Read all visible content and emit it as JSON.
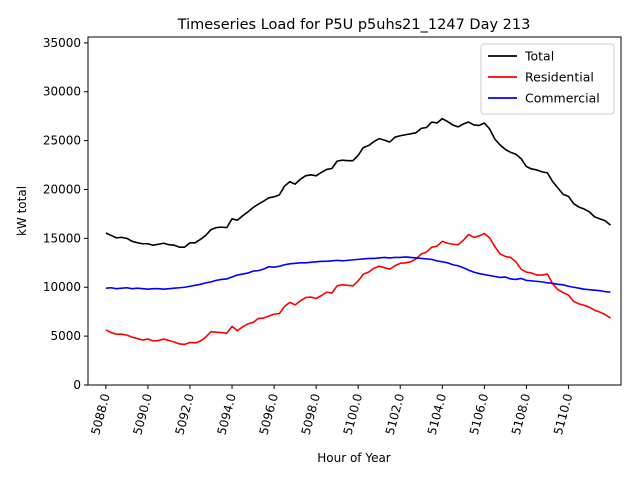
{
  "chart_data": {
    "type": "line",
    "title": "Timeseries Load for P5U p5uhs21_1247  Day 213",
    "xlabel": "Hour of Year",
    "ylabel": "kW total",
    "xlim": [
      5087.15,
      5112.5
    ],
    "ylim": [
      0,
      35600
    ],
    "x_start": 5088.0,
    "x_step": 0.25,
    "x_ticks": [
      5088,
      5090,
      5092,
      5094,
      5096,
      5098,
      5100,
      5102,
      5104,
      5106,
      5108,
      5110
    ],
    "x_tick_labels": [
      "5088.0",
      "5090.0",
      "5092.0",
      "5094.0",
      "5096.0",
      "5098.0",
      "5100.0",
      "5102.0",
      "5104.0",
      "5106.0",
      "5108.0",
      "5110.0"
    ],
    "y_ticks": [
      0,
      5000,
      10000,
      15000,
      20000,
      25000,
      30000,
      35000
    ],
    "y_tick_labels": [
      "0",
      "5000",
      "10000",
      "15000",
      "20000",
      "25000",
      "30000",
      "35000"
    ],
    "legend_position": "top-right",
    "grid": false,
    "series": [
      {
        "name": "Total",
        "color": "#000000",
        "values": [
          15550,
          15300,
          15050,
          15100,
          15000,
          14700,
          14550,
          14450,
          14450,
          14300,
          14400,
          14500,
          14350,
          14300,
          14100,
          14100,
          14550,
          14550,
          14900,
          15300,
          15900,
          16100,
          16150,
          16100,
          17000,
          16850,
          17300,
          17700,
          18150,
          18500,
          18800,
          19150,
          19250,
          19450,
          20350,
          20800,
          20550,
          21050,
          21400,
          21500,
          21400,
          21750,
          22050,
          22150,
          22900,
          23000,
          22950,
          22950,
          23500,
          24300,
          24500,
          24900,
          25200,
          25050,
          24850,
          25350,
          25500,
          25600,
          25700,
          25800,
          26250,
          26350,
          26900,
          26800,
          27250,
          26950,
          26600,
          26400,
          26700,
          26900,
          26600,
          26550,
          26800,
          26200,
          25150,
          24550,
          24100,
          23800,
          23600,
          23150,
          22350,
          22100,
          22000,
          21800,
          21700,
          20800,
          20150,
          19500,
          19300,
          18550,
          18200,
          18000,
          17700,
          17200,
          17000,
          16800,
          16350
        ]
      },
      {
        "name": "Residential",
        "color": "#ff0000",
        "values": [
          5650,
          5350,
          5200,
          5200,
          5100,
          4900,
          4750,
          4600,
          4700,
          4500,
          4550,
          4700,
          4550,
          4400,
          4200,
          4150,
          4350,
          4300,
          4500,
          4900,
          5450,
          5400,
          5350,
          5300,
          6000,
          5550,
          5950,
          6250,
          6400,
          6800,
          6850,
          7050,
          7250,
          7300,
          8050,
          8450,
          8200,
          8600,
          8950,
          9000,
          8850,
          9150,
          9500,
          9400,
          10150,
          10250,
          10200,
          10150,
          10650,
          11350,
          11550,
          11950,
          12150,
          12000,
          11850,
          12200,
          12450,
          12500,
          12600,
          12900,
          13400,
          13600,
          14100,
          14200,
          14700,
          14500,
          14400,
          14350,
          14800,
          15400,
          15100,
          15250,
          15500,
          15050,
          14150,
          13400,
          13150,
          13050,
          12600,
          11850,
          11550,
          11450,
          11250,
          11250,
          11350,
          10350,
          9750,
          9450,
          9200,
          8550,
          8300,
          8150,
          7950,
          7650,
          7450,
          7200,
          6850
        ]
      },
      {
        "name": "Commercial",
        "color": "#0000ff",
        "values": [
          9900,
          9950,
          9850,
          9900,
          9950,
          9850,
          9900,
          9850,
          9800,
          9850,
          9850,
          9800,
          9850,
          9900,
          9950,
          10000,
          10100,
          10200,
          10300,
          10450,
          10550,
          10700,
          10800,
          10850,
          11050,
          11250,
          11350,
          11450,
          11650,
          11700,
          11850,
          12100,
          12050,
          12150,
          12300,
          12400,
          12450,
          12500,
          12500,
          12550,
          12600,
          12650,
          12650,
          12700,
          12750,
          12700,
          12750,
          12800,
          12850,
          12900,
          12950,
          12950,
          13000,
          13050,
          13000,
          13050,
          13050,
          13100,
          13050,
          13000,
          12950,
          12900,
          12850,
          12700,
          12600,
          12500,
          12300,
          12200,
          12000,
          11750,
          11550,
          11400,
          11300,
          11200,
          11100,
          11000,
          11050,
          10850,
          10800,
          10900,
          10700,
          10650,
          10600,
          10550,
          10450,
          10400,
          10300,
          10250,
          10100,
          10000,
          9900,
          9800,
          9750,
          9700,
          9650,
          9550,
          9500
        ]
      }
    ]
  }
}
